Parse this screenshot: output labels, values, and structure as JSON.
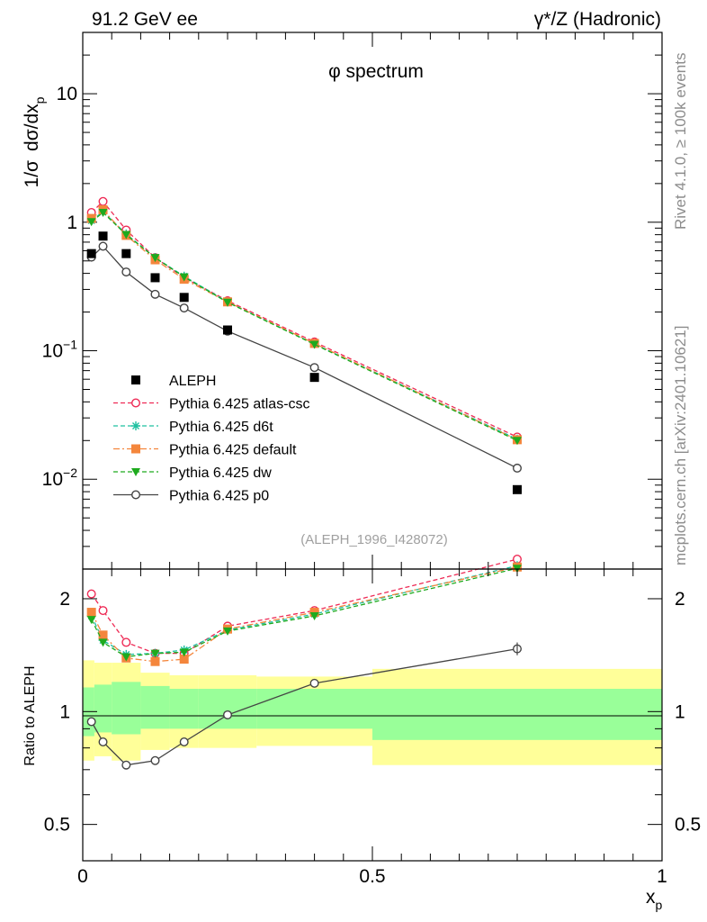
{
  "header": {
    "left": "91.2 GeV ee",
    "right": "γ*/Z (Hadronic)"
  },
  "side_labels": {
    "rivet": "Rivet 4.1.0, ≥ 100k events",
    "mcplots": "mcplots.cern.ch [arXiv:2401.10621]"
  },
  "chart_data": [
    {
      "type": "line",
      "panel": "main",
      "title": "φ spectrum",
      "ylabel_parts": [
        "1/σ",
        "dσ/dx",
        "p"
      ],
      "yscale": "log",
      "ylim": [
        0.002,
        30
      ],
      "xlim": [
        0,
        1
      ],
      "yticks": [
        {
          "value": 10,
          "label": "10"
        },
        {
          "value": 1,
          "label": "1"
        },
        {
          "value": 0.1,
          "base": "10",
          "exp": "−1"
        },
        {
          "value": 0.01,
          "base": "10",
          "exp": "−2"
        }
      ],
      "reference": "(ALEPH_1996_I428072)",
      "legend_position": "center-left",
      "x": [
        0.015,
        0.035,
        0.075,
        0.125,
        0.175,
        0.25,
        0.4,
        0.75
      ],
      "series": [
        {
          "name": "ALEPH",
          "color": "#000000",
          "marker": "square",
          "line": "none",
          "values": [
            0.57,
            0.78,
            0.57,
            0.37,
            0.26,
            0.145,
            0.062,
            0.0083
          ]
        },
        {
          "name": "Pythia 6.425 atlas-csc",
          "color": "#ee2a55",
          "marker": "open-circle",
          "line": "dashed",
          "values": [
            1.19,
            1.45,
            0.87,
            0.53,
            0.37,
            0.245,
            0.117,
            0.0213
          ]
        },
        {
          "name": "Pythia 6.425 d6t",
          "color": "#1ec0a0",
          "marker": "star",
          "line": "dashed",
          "values": [
            1.03,
            1.21,
            0.81,
            0.53,
            0.38,
            0.24,
            0.113,
            0.0205
          ]
        },
        {
          "name": "Pythia 6.425 default",
          "color": "#f4863c",
          "marker": "square",
          "line": "dashdot",
          "values": [
            1.07,
            1.25,
            0.79,
            0.51,
            0.36,
            0.24,
            0.114,
            0.0203
          ]
        },
        {
          "name": "Pythia 6.425 dw",
          "color": "#1eaa1e",
          "marker": "triangle-down",
          "line": "dashed",
          "values": [
            1.01,
            1.19,
            0.8,
            0.53,
            0.375,
            0.238,
            0.112,
            0.02
          ]
        },
        {
          "name": "Pythia 6.425 p0",
          "color": "#444444",
          "marker": "open-circle",
          "line": "solid",
          "values": [
            0.535,
            0.65,
            0.41,
            0.275,
            0.215,
            0.142,
            0.074,
            0.0122
          ]
        }
      ]
    },
    {
      "type": "line",
      "panel": "ratio",
      "ylabel": "Ratio to ALEPH",
      "yscale": "log",
      "ylim": [
        0.4,
        2.4
      ],
      "xlim": [
        0,
        1
      ],
      "xlabel_parts": [
        "x",
        "p"
      ],
      "xticks": [
        {
          "value": 0,
          "label": "0"
        },
        {
          "value": 0.5,
          "label": "0.5"
        },
        {
          "value": 1,
          "label": "1"
        }
      ],
      "yticks": [
        {
          "value": 2,
          "label": "2"
        },
        {
          "value": 1,
          "label": "1"
        },
        {
          "value": 0.5,
          "label": "0.5"
        }
      ],
      "bins": [
        [
          0,
          0.02
        ],
        [
          0.02,
          0.05
        ],
        [
          0.05,
          0.1
        ],
        [
          0.1,
          0.15
        ],
        [
          0.15,
          0.2
        ],
        [
          0.2,
          0.3
        ],
        [
          0.3,
          0.5
        ],
        [
          0.5,
          1.0
        ]
      ],
      "band_inner": [
        [
          0.86,
          1.16
        ],
        [
          0.88,
          1.18
        ],
        [
          0.87,
          1.2
        ],
        [
          0.9,
          1.17
        ],
        [
          0.9,
          1.15
        ],
        [
          0.9,
          1.15
        ],
        [
          0.9,
          1.15
        ],
        [
          0.84,
          1.15
        ]
      ],
      "band_outer": [
        [
          0.74,
          1.37
        ],
        [
          0.76,
          1.35
        ],
        [
          0.74,
          1.35
        ],
        [
          0.79,
          1.27
        ],
        [
          0.8,
          1.25
        ],
        [
          0.8,
          1.25
        ],
        [
          0.81,
          1.24
        ],
        [
          0.72,
          1.3
        ]
      ],
      "x": [
        0.015,
        0.035,
        0.075,
        0.125,
        0.175,
        0.25,
        0.4,
        0.75
      ],
      "series": [
        {
          "name": "Pythia 6.425 atlas-csc",
          "color": "#ee2a55",
          "marker": "open-circle",
          "line": "dashed",
          "values": [
            2.06,
            1.86,
            1.53,
            1.43,
            1.43,
            1.69,
            1.86,
            2.55
          ]
        },
        {
          "name": "Pythia 6.425 d6t",
          "color": "#1ec0a0",
          "marker": "star",
          "line": "dashed",
          "values": [
            1.8,
            1.55,
            1.42,
            1.43,
            1.46,
            1.65,
            1.82,
            2.45
          ]
        },
        {
          "name": "Pythia 6.425 default",
          "color": "#f4863c",
          "marker": "square",
          "line": "dashdot",
          "values": [
            1.84,
            1.6,
            1.39,
            1.36,
            1.38,
            1.66,
            1.84,
            2.43
          ]
        },
        {
          "name": "Pythia 6.425 dw",
          "color": "#1eaa1e",
          "marker": "triangle-down",
          "line": "dashed",
          "values": [
            1.76,
            1.53,
            1.4,
            1.43,
            1.44,
            1.64,
            1.8,
            2.41
          ]
        },
        {
          "name": "Pythia 6.425 p0",
          "color": "#444444",
          "marker": "open-circle",
          "line": "solid",
          "values": [
            0.94,
            0.83,
            0.72,
            0.74,
            0.83,
            0.98,
            1.19,
            1.47
          ]
        }
      ]
    }
  ]
}
